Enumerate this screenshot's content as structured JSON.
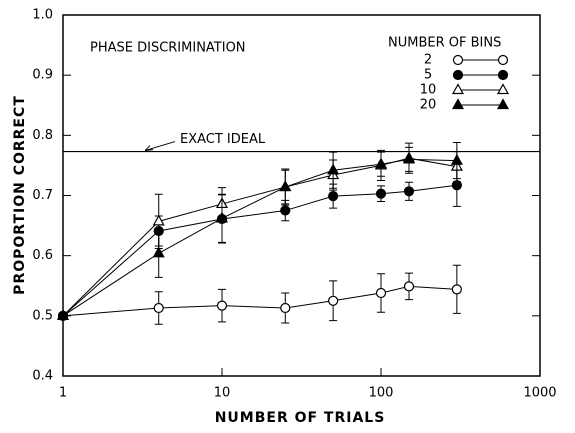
{
  "chart_data": {
    "type": "line",
    "annotation": "PHASE DISCRIMINATION",
    "legend_title": "NUMBER OF BINS",
    "x_label": "NUMBER OF TRIALS",
    "y_label": "PROPORTION CORRECT",
    "x": [
      1,
      4,
      10,
      25,
      50,
      100,
      150,
      300
    ],
    "x_log": true,
    "xlim": [
      1,
      1000
    ],
    "xticks": [
      1,
      10,
      100,
      1000
    ],
    "ylim": [
      0.4,
      1.0
    ],
    "yticks": [
      0.4,
      0.5,
      0.6,
      0.7,
      0.8,
      0.9,
      {
        "value": 1,
        "label": "1.0"
      }
    ],
    "reference_line": {
      "label": "EXACT IDEAL",
      "value": 0.773
    },
    "series": [
      {
        "name": "2",
        "color": "#000000",
        "marker": "circle",
        "filled": false,
        "values": [
          0.5,
          0.513,
          0.517,
          0.513,
          0.525,
          0.538,
          0.549,
          0.544
        ],
        "errors": [
          null,
          0.027,
          0.027,
          0.025,
          0.033,
          0.032,
          0.022,
          0.04
        ]
      },
      {
        "name": "5",
        "color": "#000000",
        "marker": "circle",
        "filled": true,
        "values": [
          0.5,
          0.641,
          0.661,
          0.675,
          0.699,
          0.703,
          0.707,
          0.717
        ],
        "errors": [
          null,
          0.025,
          0.04,
          0.017,
          0.02,
          0.013,
          0.015,
          0.035
        ]
      },
      {
        "name": "10",
        "color": "#000000",
        "marker": "triangle",
        "filled": false,
        "values": [
          0.5,
          0.657,
          0.686,
          0.714,
          0.734,
          0.75,
          0.762,
          0.748
        ],
        "errors": [
          null,
          0.045,
          0.027,
          0.028,
          0.025,
          0.025,
          0.025,
          0.025
        ]
      },
      {
        "name": "20",
        "color": "#000000",
        "marker": "triangle",
        "filled": true,
        "values": [
          0.5,
          0.604,
          0.662,
          0.714,
          0.742,
          0.752,
          0.76,
          0.758
        ],
        "errors": [
          null,
          0.04,
          0.04,
          0.03,
          0.03,
          0.02,
          0.02,
          0.03
        ]
      }
    ]
  }
}
